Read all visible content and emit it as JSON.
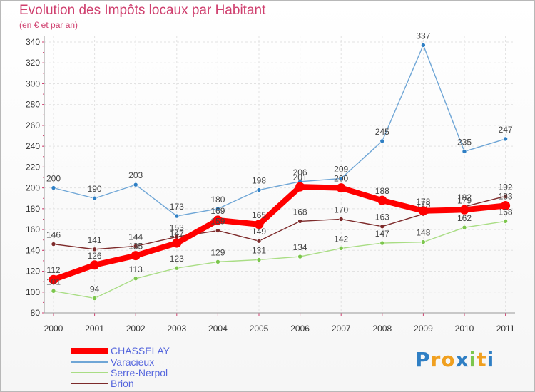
{
  "chart_data": {
    "type": "line",
    "title": "Evolution des Impôts locaux par Habitant",
    "subtitle": "(en € et par an)",
    "xlabel": "",
    "ylabel": "",
    "categories": [
      "2000",
      "2001",
      "2002",
      "2003",
      "2004",
      "2005",
      "2006",
      "2007",
      "2008",
      "2009",
      "2010",
      "2011"
    ],
    "ylim": [
      80,
      340
    ],
    "yticks": [
      80,
      100,
      120,
      140,
      160,
      180,
      200,
      220,
      240,
      260,
      280,
      300,
      320,
      340
    ],
    "grid": true,
    "legend_position": "bottom-left",
    "series": [
      {
        "name": "Varacieux",
        "color": "#6fa6d6",
        "marker": "#2f7fc4",
        "values": [
          200,
          190,
          203,
          173,
          180,
          198,
          206,
          209,
          245,
          337,
          235,
          247
        ]
      },
      {
        "name": "Serre-Nerpol",
        "color": "#a9dd84",
        "marker": "#7cc64d",
        "values": [
          101,
          94,
          113,
          123,
          129,
          131,
          134,
          142,
          147,
          148,
          162,
          168
        ]
      },
      {
        "name": "Brion",
        "color": "#7d2a2a",
        "marker": "#7d2a2a",
        "values": [
          146,
          141,
          144,
          153,
          159,
          149,
          168,
          170,
          163,
          175,
          182,
          192
        ]
      },
      {
        "name": "CHASSELAY",
        "color": "#ff0000",
        "marker": "#ff0000",
        "values": [
          112,
          126,
          135,
          147,
          169,
          165,
          201,
          200,
          188,
          178,
          179,
          183
        ]
      }
    ],
    "legend_order": [
      "CHASSELAY",
      "Varacieux",
      "Serre-Nerpol",
      "Brion"
    ]
  },
  "logo": {
    "text": "Proxiti",
    "letters": [
      "P",
      "r",
      "o",
      "x",
      "i",
      "t",
      "i"
    ],
    "colors": [
      "#2f7fc4",
      "#f0a020",
      "#f0a020",
      "#2f7fc4",
      "#7cc64d",
      "#f0a020",
      "#2f7fc4"
    ]
  }
}
